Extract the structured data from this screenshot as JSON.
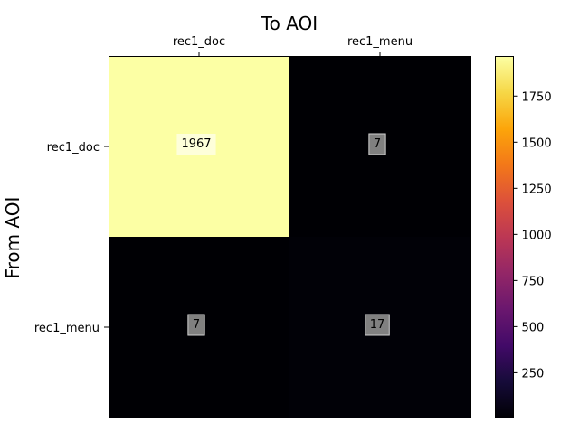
{
  "chart_data": {
    "type": "heatmap",
    "title": "To AOI",
    "ylabel": "From AOI",
    "x_categories": [
      "rec1_doc",
      "rec1_menu"
    ],
    "y_categories": [
      "rec1_doc",
      "rec1_menu"
    ],
    "values": [
      [
        1967,
        7
      ],
      [
        7,
        17
      ]
    ],
    "colormap": "inferno",
    "colorbar": {
      "ticks": [
        250,
        500,
        750,
        1000,
        1250,
        1500,
        1750
      ],
      "tick_labels": [
        "250",
        "500",
        "750",
        "1000",
        "1250",
        "1500",
        "1750"
      ],
      "range": [
        7,
        1967
      ]
    },
    "x_axis_position": "top",
    "grid": false
  }
}
